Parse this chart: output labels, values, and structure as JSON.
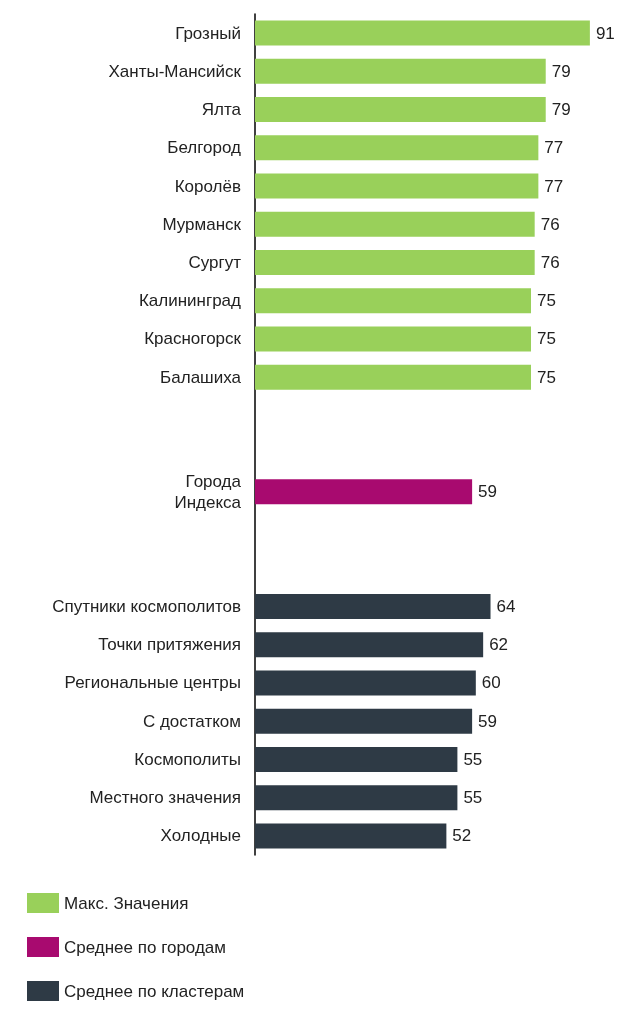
{
  "chart_data": {
    "type": "bar",
    "orientation": "horizontal",
    "stacked": true,
    "data_labels": true,
    "legend": "bottom left",
    "tick_labels": "y",
    "categories": [
      "Грозный",
      "Ханты-Мансийск",
      "Ялта",
      "Белгород",
      "Королёв",
      "Мурманск",
      "Сургут",
      "Калининград",
      "Красногорск",
      "Балашиха",
      null,
      null,
      "Города\nИндекса",
      null,
      null,
      "Спутники космополитов",
      "Точки притяжения",
      "Региональные центры",
      "С достатком",
      "Космополиты",
      "Местного значения",
      "Холодные"
    ],
    "series": [
      {
        "name": "Макс. Значения",
        "color": "#99d05a",
        "values": [
          91,
          79,
          79,
          77,
          77,
          76,
          76,
          75,
          75,
          75,
          null,
          null,
          null,
          null,
          null,
          null,
          null,
          null,
          null,
          null,
          null,
          null
        ]
      },
      {
        "name": "Среднее по городам",
        "color": "#a80a6f",
        "values": [
          null,
          null,
          null,
          null,
          null,
          null,
          null,
          null,
          null,
          null,
          null,
          null,
          59,
          null,
          null,
          null,
          null,
          null,
          null,
          null,
          null,
          null
        ]
      },
      {
        "name": "Среднее по кластерам",
        "color": "#2e3a45",
        "values": [
          null,
          null,
          null,
          null,
          null,
          null,
          null,
          null,
          null,
          null,
          null,
          null,
          null,
          null,
          null,
          64,
          62,
          60,
          59,
          55,
          55,
          52
        ]
      }
    ]
  }
}
